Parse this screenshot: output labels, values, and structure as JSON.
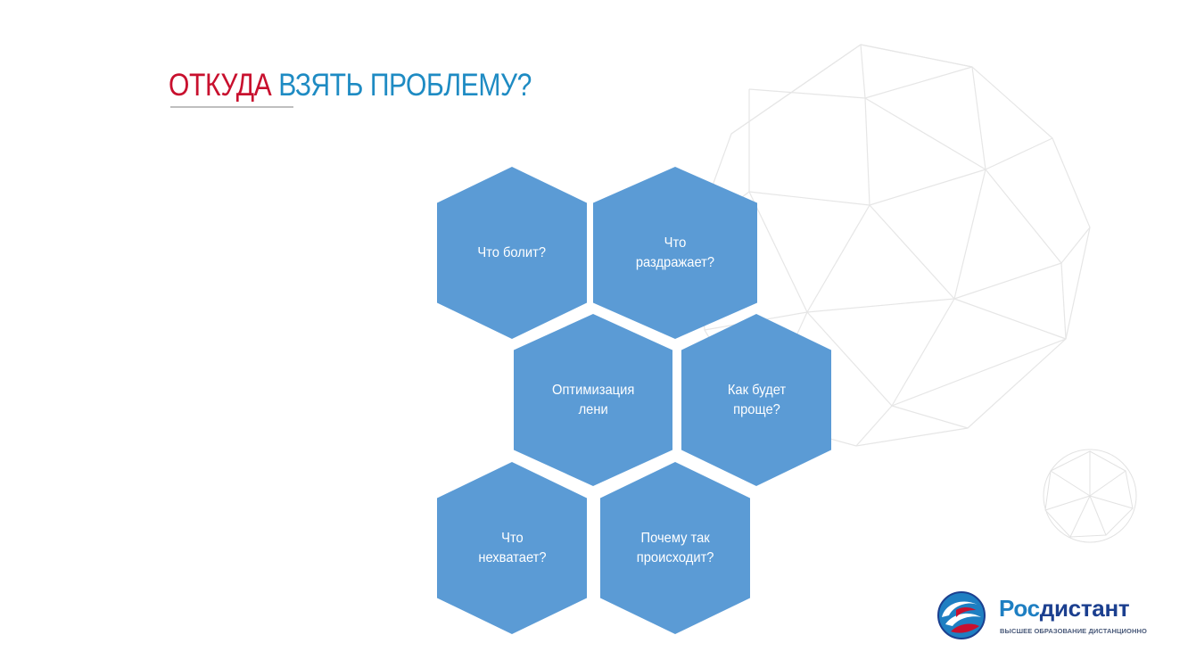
{
  "title": {
    "accent": "ОТКУДА",
    "main": "ВЗЯТЬ ПРОБЛЕМУ?"
  },
  "hexagons": [
    {
      "label": "Что болит?"
    },
    {
      "label": "Что\nраздражает?"
    },
    {
      "label": "Оптимизация\nлени"
    },
    {
      "label": "Как будет\nпроще?"
    },
    {
      "label": "Что\nнехватает?"
    },
    {
      "label": "Почему так\nпроисходит?"
    }
  ],
  "logo": {
    "name_part1": "Рос",
    "name_part2": "дистант",
    "tagline": "ВЫСШЕЕ ОБРАЗОВАНИЕ ДИСТАНЦИОННО"
  },
  "colors": {
    "hex_fill": "#5b9bd5",
    "title_accent": "#c8102e",
    "title_main": "#1e8bc3"
  }
}
